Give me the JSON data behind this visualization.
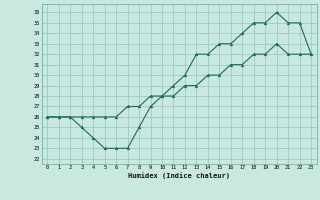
{
  "xlabel": "Humidex (Indice chaleur)",
  "bg_color": "#c8e8e0",
  "grid_color": "#9ec8c0",
  "line_color": "#1a6b5a",
  "xlim": [
    -0.5,
    23.5
  ],
  "ylim": [
    21.5,
    36.8
  ],
  "xticks": [
    0,
    1,
    2,
    3,
    4,
    5,
    6,
    7,
    8,
    9,
    10,
    11,
    12,
    13,
    14,
    15,
    16,
    17,
    18,
    19,
    20,
    21,
    22,
    23
  ],
  "yticks": [
    22,
    23,
    24,
    25,
    26,
    27,
    28,
    29,
    30,
    31,
    32,
    33,
    34,
    35,
    36
  ],
  "line1_x": [
    0,
    1,
    2,
    3,
    4,
    5,
    6,
    7,
    8,
    9,
    10,
    11,
    12,
    13,
    14,
    15,
    16,
    17,
    18,
    19,
    20,
    21,
    22,
    23
  ],
  "line1_y": [
    26,
    26,
    26,
    25,
    24,
    23,
    23,
    23,
    25,
    27,
    28,
    29,
    30,
    32,
    32,
    33,
    33,
    34,
    35,
    35,
    36,
    35,
    35,
    32
  ],
  "line2_x": [
    0,
    1,
    2,
    3,
    4,
    5,
    6,
    7,
    8,
    9,
    10,
    11,
    12,
    13,
    14,
    15,
    16,
    17,
    18,
    19,
    20,
    21,
    22,
    23
  ],
  "line2_y": [
    26,
    26,
    26,
    26,
    26,
    26,
    26,
    27,
    27,
    28,
    28,
    28,
    29,
    29,
    30,
    30,
    31,
    31,
    32,
    32,
    33,
    32,
    32,
    32
  ]
}
